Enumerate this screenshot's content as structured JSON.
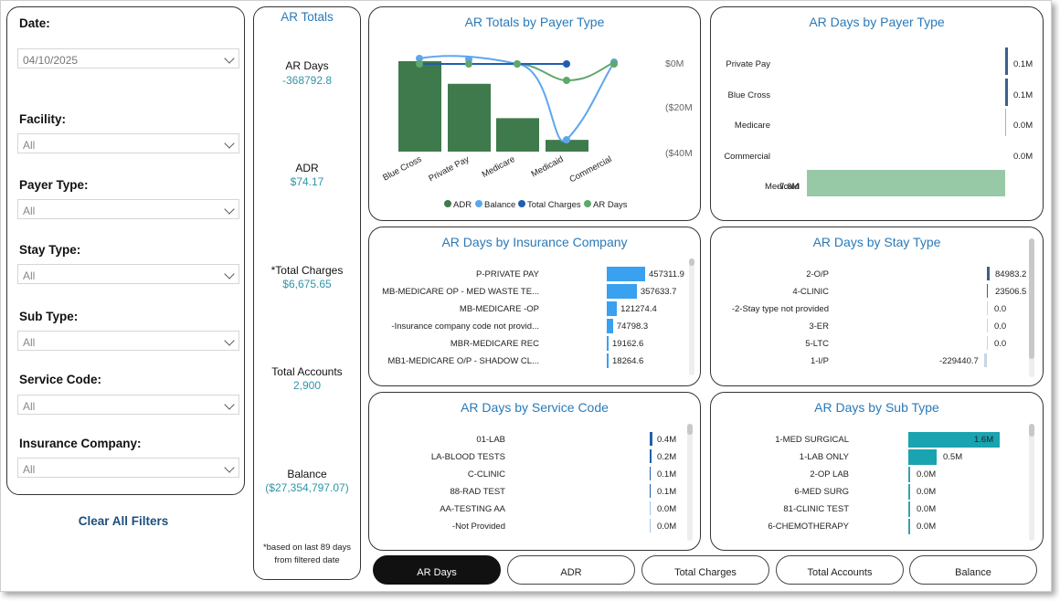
{
  "filters": {
    "date": {
      "label": "Date:",
      "value": "04/10/2025"
    },
    "facility": {
      "label": "Facility:",
      "value": "All"
    },
    "payer_type": {
      "label": "Payer Type:",
      "value": "All"
    },
    "stay_type": {
      "label": "Stay Type:",
      "value": "All"
    },
    "sub_type": {
      "label": "Sub Type:",
      "value": "All"
    },
    "service_code": {
      "label": "Service Code:",
      "value": "All"
    },
    "insurance_company": {
      "label": "Insurance Company:",
      "value": "All"
    },
    "clear_all": "Clear All Filters"
  },
  "totals": {
    "title": "AR Totals",
    "ar_days": {
      "label": "AR Days",
      "value": "-368792.8"
    },
    "adr": {
      "label": "ADR",
      "value": "$74.17"
    },
    "total_charges": {
      "label": "*Total Charges",
      "value": "$6,675.65"
    },
    "total_accounts": {
      "label": "Total Accounts",
      "value": "2,900"
    },
    "balance": {
      "label": "Balance",
      "value": "($27,354,797.07)"
    },
    "note": "*based on last 89 days from filtered date"
  },
  "payer_chart": {
    "title": "AR Totals by Payer Type",
    "categories": [
      "Blue Cross",
      "Private Pay",
      "Medicare",
      "Medicaid",
      "Commercial"
    ],
    "adr_bars": [
      100,
      75,
      37,
      13,
      0
    ],
    "y_ticks": [
      "$0M",
      "($20M",
      "($40M"
    ],
    "legend": [
      "ADR",
      "Balance",
      "Total Charges",
      "AR Days"
    ]
  },
  "ar_days_payer": {
    "title": "AR Days by Payer Type",
    "rows": [
      {
        "label": "Private Pay",
        "value": "0.1M",
        "num": 0.1
      },
      {
        "label": "Blue Cross",
        "value": "0.1M",
        "num": 0.1
      },
      {
        "label": "Medicare",
        "value": "0.0M",
        "num": 0.0
      },
      {
        "label": "Commercial",
        "value": "0.0M",
        "num": 0.0
      },
      {
        "label": "Medicaid",
        "value": "-7.6M",
        "num": -7.6
      }
    ]
  },
  "insurance": {
    "title": "AR Days by Insurance Company",
    "rows": [
      {
        "label": "P-PRIVATE PAY",
        "value": "457311.9",
        "num": 457311.9
      },
      {
        "label": "MB-MEDICARE OP - MED WASTE TE...",
        "value": "357633.7",
        "num": 357633.7
      },
      {
        "label": "MB-MEDICARE -OP",
        "value": "121274.4",
        "num": 121274.4
      },
      {
        "label": "-Insurance company code not provid...",
        "value": "74798.3",
        "num": 74798.3
      },
      {
        "label": "MBR-MEDICARE REC",
        "value": "19162.6",
        "num": 19162.6
      },
      {
        "label": "MB1-MEDICARE O/P - SHADOW CL...",
        "value": "18264.6",
        "num": 18264.6
      }
    ]
  },
  "stay": {
    "title": "AR Days by Stay Type",
    "rows": [
      {
        "label": "2-O/P",
        "value": "84983.2",
        "num": 84983.2
      },
      {
        "label": "4-CLINIC",
        "value": "23506.5",
        "num": 23506.5
      },
      {
        "label": "-2-Stay type not provided",
        "value": "0.0",
        "num": 0
      },
      {
        "label": "3-ER",
        "value": "0.0",
        "num": 0
      },
      {
        "label": "5-LTC",
        "value": "0.0",
        "num": 0
      },
      {
        "label": "1-I/P",
        "value": "-229440.7",
        "num": -229440.7
      }
    ]
  },
  "service": {
    "title": "AR Days by Service Code",
    "rows": [
      {
        "label": "01-LAB",
        "value": "0.4M",
        "num": 0.4
      },
      {
        "label": "LA-BLOOD TESTS",
        "value": "0.2M",
        "num": 0.2
      },
      {
        "label": "C-CLINIC",
        "value": "0.1M",
        "num": 0.1
      },
      {
        "label": "88-RAD TEST",
        "value": "0.1M",
        "num": 0.1
      },
      {
        "label": "AA-TESTING AA",
        "value": "0.0M",
        "num": 0.0
      },
      {
        "label": "-Not Provided",
        "value": "0.0M",
        "num": 0.0
      }
    ]
  },
  "subtype": {
    "title": "AR Days by Sub Type",
    "rows": [
      {
        "label": "1-MED SURGICAL",
        "value": "1.6M",
        "num": 1.6
      },
      {
        "label": "1-LAB ONLY",
        "value": "0.5M",
        "num": 0.5
      },
      {
        "label": "2-OP LAB",
        "value": "0.0M",
        "num": 0.0
      },
      {
        "label": "6-MED SURG",
        "value": "0.0M",
        "num": 0.0
      },
      {
        "label": "81-CLINIC TEST",
        "value": "0.0M",
        "num": 0.0
      },
      {
        "label": "6-CHEMOTHERAPY",
        "value": "0.0M",
        "num": 0.0
      }
    ]
  },
  "tabs": [
    "AR Days",
    "ADR",
    "Total Charges",
    "Total Accounts",
    "Balance"
  ],
  "colors": {
    "accent": "#2a7ab9",
    "teal": "#2f95a6",
    "bar_green": "#3f7a4d",
    "bar_blue": "#3aa0f0",
    "bar_teal": "#1aa3b0",
    "neg_green": "#98c9a6",
    "navy": "#3d5f8a"
  }
}
